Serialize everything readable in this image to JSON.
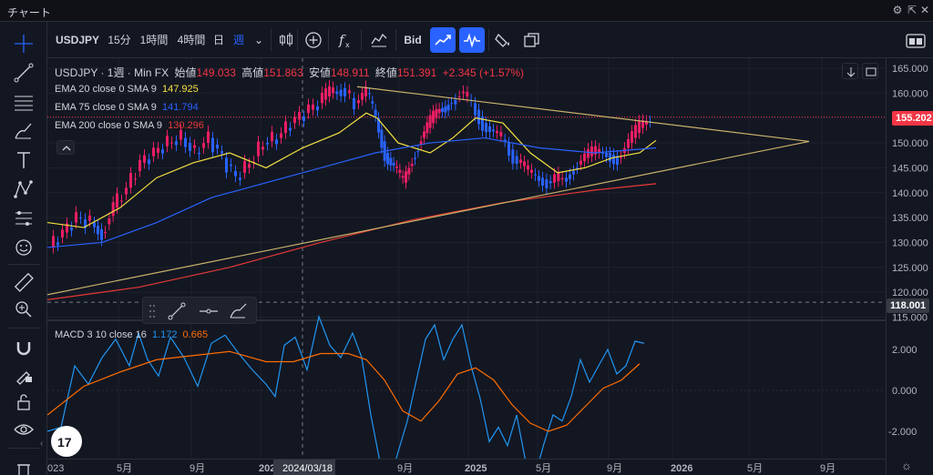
{
  "window": {
    "title": "チャート"
  },
  "toolbar": {
    "symbol": "USDJPY",
    "intervals": [
      "15分",
      "1時間",
      "4時間",
      "日",
      "週"
    ],
    "active_interval": "週",
    "bid_label": "Bid"
  },
  "legend": {
    "symbol_line": "USDJPY · 1週 · Min FX",
    "open_label": "始値",
    "open": "149.033",
    "high_label": "高値",
    "high": "151.863",
    "low_label": "安値",
    "low": "148.911",
    "close_label": "終値",
    "close": "151.391",
    "change": "+2.345 (+1.57%)",
    "ema1_label": "EMA 20 close 0 SMA 9",
    "ema1_value": "147.925",
    "ema2_label": "EMA 75 close 0 SMA 9",
    "ema2_value": "141.794",
    "ema3_label": "EMA 200 close 0 SMA 9",
    "ema3_value": "130.296",
    "macd_label": "MACD 3 10 close 16",
    "macd_value1": "1.172",
    "macd_value2": "0.665"
  },
  "price_axis": {
    "ticks": [
      "165.000",
      "160.000",
      "155.000",
      "150.000",
      "145.000",
      "140.000",
      "135.000",
      "130.000",
      "125.000",
      "120.000",
      "115.000"
    ],
    "current_price": "155.202",
    "crosshair_price": "118.001",
    "macd_ticks": [
      "2.000",
      "0.000",
      "-2.000"
    ]
  },
  "time_axis": {
    "labels": [
      "023",
      "5月",
      "9月",
      "2024",
      "2024/03/18",
      "9月",
      "2025",
      "5月",
      "9月",
      "2026",
      "5月",
      "9月"
    ]
  },
  "colors": {
    "up": "#e91e63",
    "down": "#2962ff",
    "ema20": "#f5e141",
    "ema75": "#2962ff",
    "ema200": "#e53935",
    "macd": "#2196f3",
    "signal": "#ff6d00",
    "trendline": "#c9b26a"
  },
  "icons": {
    "sidebar": [
      "crosshair-icon",
      "trendline-icon",
      "fib-icon",
      "brush-icon",
      "text-icon",
      "pattern-icon",
      "prediction-icon",
      "emoji-icon",
      "ruler-icon",
      "zoom-icon",
      "magnet-icon",
      "lock-drawing-icon",
      "unlock-icon",
      "eye-icon",
      "trash-icon"
    ]
  }
}
